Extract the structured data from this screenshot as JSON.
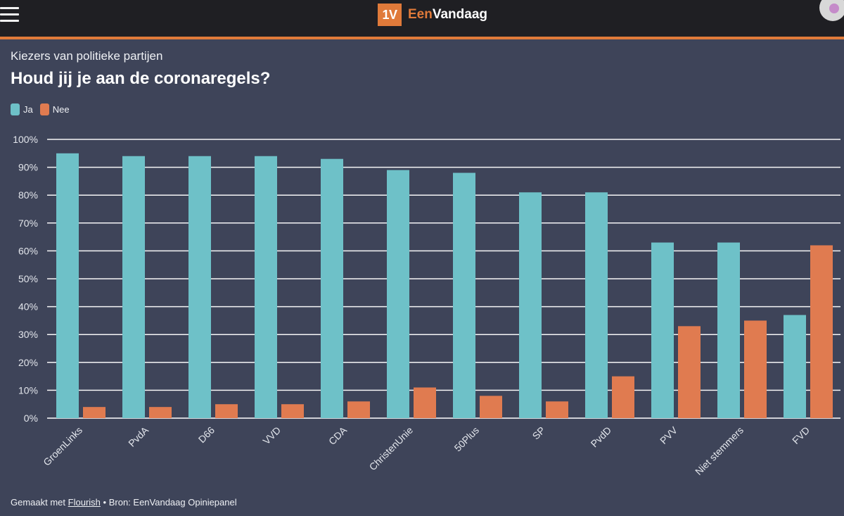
{
  "header": {
    "logo_badge": "1V",
    "logo_een": "Een",
    "logo_rest": "Vandaag"
  },
  "chart_title": {
    "subtitle": "Kiezers van politieke partijen",
    "title": "Houd jij je aan de coronaregels?"
  },
  "legend": [
    {
      "label": "Ja",
      "color": "#6ec1c8"
    },
    {
      "label": "Nee",
      "color": "#e07b50"
    }
  ],
  "chart_data": {
    "type": "bar",
    "title": "Houd jij je aan de coronaregels?",
    "subtitle": "Kiezers van politieke partijen",
    "xlabel": "",
    "ylabel": "",
    "ylim": [
      0,
      100
    ],
    "yticks": [
      "0%",
      "10%",
      "20%",
      "30%",
      "40%",
      "50%",
      "60%",
      "70%",
      "80%",
      "90%",
      "100%"
    ],
    "categories": [
      "GroenLinks",
      "PvdA",
      "D66",
      "VVD",
      "CDA",
      "ChristenUnie",
      "50Plus",
      "SP",
      "PvdD",
      "PVV",
      "Niet stemmers",
      "FVD"
    ],
    "series": [
      {
        "name": "Ja",
        "color": "#6ec1c8",
        "values": [
          95,
          94,
          94,
          94,
          93,
          89,
          88,
          81,
          81,
          63,
          63,
          37
        ]
      },
      {
        "name": "Nee",
        "color": "#e07b50",
        "values": [
          4,
          4,
          5,
          5,
          6,
          11,
          8,
          6,
          15,
          33,
          35,
          62
        ]
      }
    ],
    "grid": true,
    "legend_position": "top-left"
  },
  "footer": {
    "made_with": "Gemaakt met",
    "tool": "Flourish",
    "separator": "•",
    "source": "Bron: EenVandaag Opiniepanel"
  }
}
